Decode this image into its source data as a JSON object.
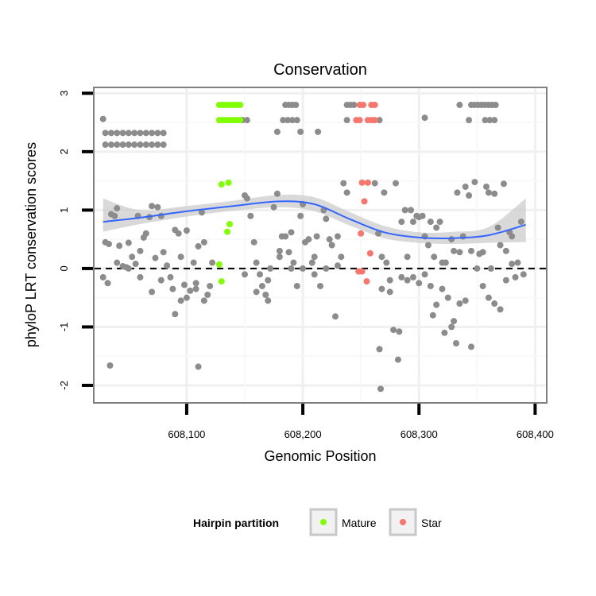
{
  "chart_data": {
    "type": "scatter",
    "title": "Conservation",
    "xlabel": "Genomic Position",
    "ylabel": "phyloP LRT conservation scores",
    "xlim": [
      608020,
      608410
    ],
    "ylim": [
      -2.3,
      3.1
    ],
    "x_ticks": [
      608100,
      608200,
      608300,
      608400
    ],
    "x_tick_labels": [
      "608,100",
      "608,200",
      "608,300",
      "608,400"
    ],
    "y_ticks": [
      -2,
      -1,
      0,
      1,
      2,
      3
    ],
    "y_tick_labels": [
      "-2",
      "-1",
      "0",
      "1",
      "2",
      "3"
    ],
    "reference_line": {
      "y": 0,
      "style": "dashed"
    },
    "grid": true,
    "legend": {
      "title": "Hairpin partition",
      "position": "bottom",
      "entries": [
        {
          "name": "Mature",
          "color": "#7fff00"
        },
        {
          "name": "Star",
          "color": "#f8766d"
        }
      ]
    },
    "colors": {
      "other": "#8c8c8c",
      "Mature": "#7fff00",
      "Star": "#f8766d",
      "smooth": "#3366ff",
      "band": "#cccccc"
    },
    "smooth": {
      "x": [
        608028,
        608060,
        608100,
        608140,
        608180,
        608210,
        608240,
        608270,
        608300,
        608330,
        608360,
        608392
      ],
      "y": [
        0.8,
        0.87,
        0.98,
        1.07,
        1.15,
        1.1,
        0.85,
        0.62,
        0.53,
        0.52,
        0.57,
        0.75
      ],
      "lower": [
        0.63,
        0.76,
        0.89,
        0.99,
        1.05,
        0.98,
        0.74,
        0.52,
        0.44,
        0.42,
        0.44,
        0.45
      ],
      "upper": [
        1.2,
        1.0,
        1.07,
        1.16,
        1.26,
        1.22,
        0.97,
        0.73,
        0.62,
        0.63,
        0.71,
        1.2
      ]
    },
    "points": [
      [
        608028,
        2.56
      ],
      [
        608030,
        2.32
      ],
      [
        608035,
        2.32
      ],
      [
        608040,
        2.32
      ],
      [
        608045,
        2.32
      ],
      [
        608050,
        2.32
      ],
      [
        608055,
        2.32
      ],
      [
        608060,
        2.32
      ],
      [
        608065,
        2.32
      ],
      [
        608070,
        2.32
      ],
      [
        608075,
        2.32
      ],
      [
        608080,
        2.32
      ],
      [
        608030,
        2.12
      ],
      [
        608035,
        2.12
      ],
      [
        608040,
        2.12
      ],
      [
        608045,
        2.12
      ],
      [
        608050,
        2.12
      ],
      [
        608055,
        2.12
      ],
      [
        608060,
        2.12
      ],
      [
        608065,
        2.12
      ],
      [
        608070,
        2.12
      ],
      [
        608075,
        2.12
      ],
      [
        608080,
        2.12
      ],
      [
        608178,
        2.34
      ],
      [
        608198,
        2.34
      ],
      [
        608213,
        2.34
      ],
      [
        608305,
        2.58
      ],
      [
        608185,
        2.8
      ],
      [
        608188,
        2.8
      ],
      [
        608191,
        2.8
      ],
      [
        608194,
        2.8
      ],
      [
        608238,
        2.8
      ],
      [
        608241,
        2.8
      ],
      [
        608244,
        2.8
      ],
      [
        608335,
        2.8
      ],
      [
        608345,
        2.8
      ],
      [
        608348,
        2.8
      ],
      [
        608351,
        2.8
      ],
      [
        608354,
        2.8
      ],
      [
        608357,
        2.8
      ],
      [
        608360,
        2.8
      ],
      [
        608363,
        2.8
      ],
      [
        608366,
        2.8
      ],
      [
        608148,
        2.54
      ],
      [
        608152,
        2.54
      ],
      [
        608183,
        2.54
      ],
      [
        608187,
        2.54
      ],
      [
        608191,
        2.54
      ],
      [
        608195,
        2.54
      ],
      [
        608238,
        2.54
      ],
      [
        608266,
        2.54
      ],
      [
        608343,
        2.54
      ],
      [
        608357,
        2.54
      ],
      [
        608361,
        2.54
      ],
      [
        608365,
        2.54
      ],
      [
        608030,
        0.45
      ],
      [
        608033,
        0.42
      ],
      [
        608035,
        0.93
      ],
      [
        608038,
        0.9
      ],
      [
        608040,
        1.03
      ],
      [
        608042,
        0.39
      ],
      [
        608045,
        0.04
      ],
      [
        608048,
        0.02
      ],
      [
        608050,
        0.44
      ],
      [
        608053,
        0.2
      ],
      [
        608056,
        0.08
      ],
      [
        608058,
        0.9
      ],
      [
        608060,
        0.3
      ],
      [
        608063,
        0.53
      ],
      [
        608065,
        0.6
      ],
      [
        608068,
        0.88
      ],
      [
        608070,
        1.07
      ],
      [
        608073,
        0.18
      ],
      [
        608075,
        1.05
      ],
      [
        608078,
        0.9
      ],
      [
        608080,
        0.28
      ],
      [
        608083,
        0.05
      ],
      [
        608086,
        -0.15
      ],
      [
        608090,
        0.66
      ],
      [
        608093,
        0.6
      ],
      [
        608095,
        0.2
      ],
      [
        608098,
        -0.28
      ],
      [
        608100,
        0.65
      ],
      [
        608103,
        -0.38
      ],
      [
        608106,
        0.1
      ],
      [
        608108,
        -0.25
      ],
      [
        608110,
        0.38
      ],
      [
        608113,
        0.96
      ],
      [
        608115,
        0.45
      ],
      [
        608118,
        -0.45
      ],
      [
        608120,
        -0.3
      ],
      [
        608122,
        0.1
      ],
      [
        608028,
        -0.15
      ],
      [
        608032,
        -0.25
      ],
      [
        608040,
        0.1
      ],
      [
        608050,
        0.0
      ],
      [
        608060,
        -0.15
      ],
      [
        608070,
        -0.4
      ],
      [
        608078,
        -0.2
      ],
      [
        608088,
        -0.35
      ],
      [
        608095,
        -0.55
      ],
      [
        608100,
        -0.5
      ],
      [
        608108,
        -0.35
      ],
      [
        608115,
        -0.55
      ],
      [
        608034,
        -1.66
      ],
      [
        608110,
        -1.68
      ],
      [
        608090,
        -0.78
      ],
      [
        608150,
        1.25
      ],
      [
        608152,
        1.2
      ],
      [
        608155,
        0.9
      ],
      [
        608158,
        0.45
      ],
      [
        608160,
        0.1
      ],
      [
        608163,
        -0.1
      ],
      [
        608165,
        -0.3
      ],
      [
        608168,
        -0.45
      ],
      [
        608170,
        -0.55
      ],
      [
        608172,
        0.0
      ],
      [
        608175,
        1.05
      ],
      [
        608178,
        1.28
      ],
      [
        608180,
        0.2
      ],
      [
        608182,
        0.55
      ],
      [
        608185,
        0.55
      ],
      [
        608188,
        0.28
      ],
      [
        608190,
        0.62
      ],
      [
        608192,
        0.1
      ],
      [
        608195,
        -0.3
      ],
      [
        608198,
        0.9
      ],
      [
        608200,
        1.1
      ],
      [
        608202,
        0.45
      ],
      [
        608205,
        0.5
      ],
      [
        608208,
        0.1
      ],
      [
        608210,
        -0.1
      ],
      [
        608212,
        0.55
      ],
      [
        608215,
        -0.3
      ],
      [
        608218,
        1.0
      ],
      [
        608220,
        0.85
      ],
      [
        608223,
        0.5
      ],
      [
        608225,
        0.4
      ],
      [
        608228,
        -0.82
      ],
      [
        608230,
        0.55
      ],
      [
        608233,
        0.2
      ],
      [
        608235,
        1.46
      ],
      [
        608238,
        1.3
      ],
      [
        608150,
        -0.1
      ],
      [
        608160,
        -0.4
      ],
      [
        608170,
        -0.2
      ],
      [
        608180,
        0.3
      ],
      [
        608190,
        0.0
      ],
      [
        608200,
        0.0
      ],
      [
        608210,
        0.2
      ],
      [
        608220,
        0.0
      ],
      [
        608230,
        0.05
      ],
      [
        608262,
        1.46
      ],
      [
        608265,
        0.6
      ],
      [
        608268,
        0.2
      ],
      [
        608270,
        1.3
      ],
      [
        608272,
        0.1
      ],
      [
        608275,
        -0.2
      ],
      [
        608278,
        -1.05
      ],
      [
        608280,
        1.46
      ],
      [
        608283,
        -1.08
      ],
      [
        608285,
        0.8
      ],
      [
        608288,
        1.0
      ],
      [
        608290,
        0.2
      ],
      [
        608293,
        1.0
      ],
      [
        608295,
        0.8
      ],
      [
        608298,
        0.9
      ],
      [
        608300,
        0.88
      ],
      [
        608303,
        0.9
      ],
      [
        608305,
        0.55
      ],
      [
        608308,
        0.4
      ],
      [
        608310,
        0.8
      ],
      [
        608313,
        0.2
      ],
      [
        608315,
        0.7
      ],
      [
        608318,
        0.8
      ],
      [
        608320,
        0.1
      ],
      [
        608323,
        0.1
      ],
      [
        608266,
        -1.38
      ],
      [
        608268,
        -0.35
      ],
      [
        608275,
        -0.4
      ],
      [
        608282,
        -1.56
      ],
      [
        608285,
        -0.15
      ],
      [
        608290,
        -0.2
      ],
      [
        608295,
        -0.15
      ],
      [
        608300,
        -0.25
      ],
      [
        608305,
        -0.1
      ],
      [
        608310,
        -0.3
      ],
      [
        608312,
        -0.8
      ],
      [
        608315,
        -0.62
      ],
      [
        608320,
        -0.35
      ],
      [
        608322,
        -1.1
      ],
      [
        608325,
        -0.5
      ],
      [
        608328,
        -1.0
      ],
      [
        608330,
        -0.9
      ],
      [
        608332,
        -1.28
      ],
      [
        608335,
        -0.6
      ],
      [
        608267,
        -2.06
      ],
      [
        608328,
        0.5
      ],
      [
        608330,
        0.3
      ],
      [
        608333,
        1.3
      ],
      [
        608335,
        0.28
      ],
      [
        608338,
        0.55
      ],
      [
        608340,
        1.4
      ],
      [
        608343,
        1.25
      ],
      [
        608345,
        0.3
      ],
      [
        608348,
        1.48
      ],
      [
        608350,
        0.0
      ],
      [
        608352,
        0.25
      ],
      [
        608355,
        0.28
      ],
      [
        608358,
        1.4
      ],
      [
        608360,
        1.3
      ],
      [
        608362,
        0.0
      ],
      [
        608365,
        1.28
      ],
      [
        608368,
        0.7
      ],
      [
        608370,
        0.4
      ],
      [
        608373,
        1.45
      ],
      [
        608375,
        0.3
      ],
      [
        608378,
        0.62
      ],
      [
        608380,
        0.55
      ],
      [
        608383,
        -0.15
      ],
      [
        608385,
        0.1
      ],
      [
        608388,
        0.8
      ],
      [
        608390,
        -0.1
      ],
      [
        608340,
        -0.55
      ],
      [
        608345,
        -1.34
      ],
      [
        608355,
        -0.3
      ],
      [
        608360,
        -0.5
      ],
      [
        608365,
        -0.6
      ],
      [
        608370,
        -0.7
      ],
      [
        608375,
        -0.2
      ],
      [
        608380,
        0.08
      ]
    ],
    "mature_points": [
      [
        608128,
        2.8
      ],
      [
        608131,
        2.8
      ],
      [
        608134,
        2.8
      ],
      [
        608137,
        2.8
      ],
      [
        608140,
        2.8
      ],
      [
        608143,
        2.8
      ],
      [
        608146,
        2.8
      ],
      [
        608128,
        2.54
      ],
      [
        608131,
        2.54
      ],
      [
        608134,
        2.54
      ],
      [
        608137,
        2.54
      ],
      [
        608140,
        2.54
      ],
      [
        608143,
        2.54
      ],
      [
        608146,
        2.54
      ],
      [
        608130,
        1.44
      ],
      [
        608136,
        1.47
      ],
      [
        608137,
        0.76
      ],
      [
        608135,
        0.63
      ],
      [
        608128,
        0.07
      ],
      [
        608130,
        -0.22
      ]
    ],
    "star_points": [
      [
        608249,
        2.8
      ],
      [
        608252,
        2.8
      ],
      [
        608259,
        2.8
      ],
      [
        608262,
        2.8
      ],
      [
        608246,
        2.54
      ],
      [
        608249,
        2.54
      ],
      [
        608256,
        2.54
      ],
      [
        608259,
        2.54
      ],
      [
        608262,
        2.54
      ],
      [
        608251,
        1.47
      ],
      [
        608256,
        1.47
      ],
      [
        608253,
        1.15
      ],
      [
        608250,
        0.6
      ],
      [
        608258,
        0.26
      ],
      [
        608248,
        -0.05
      ],
      [
        608251,
        -0.05
      ],
      [
        608255,
        -0.22
      ]
    ]
  }
}
